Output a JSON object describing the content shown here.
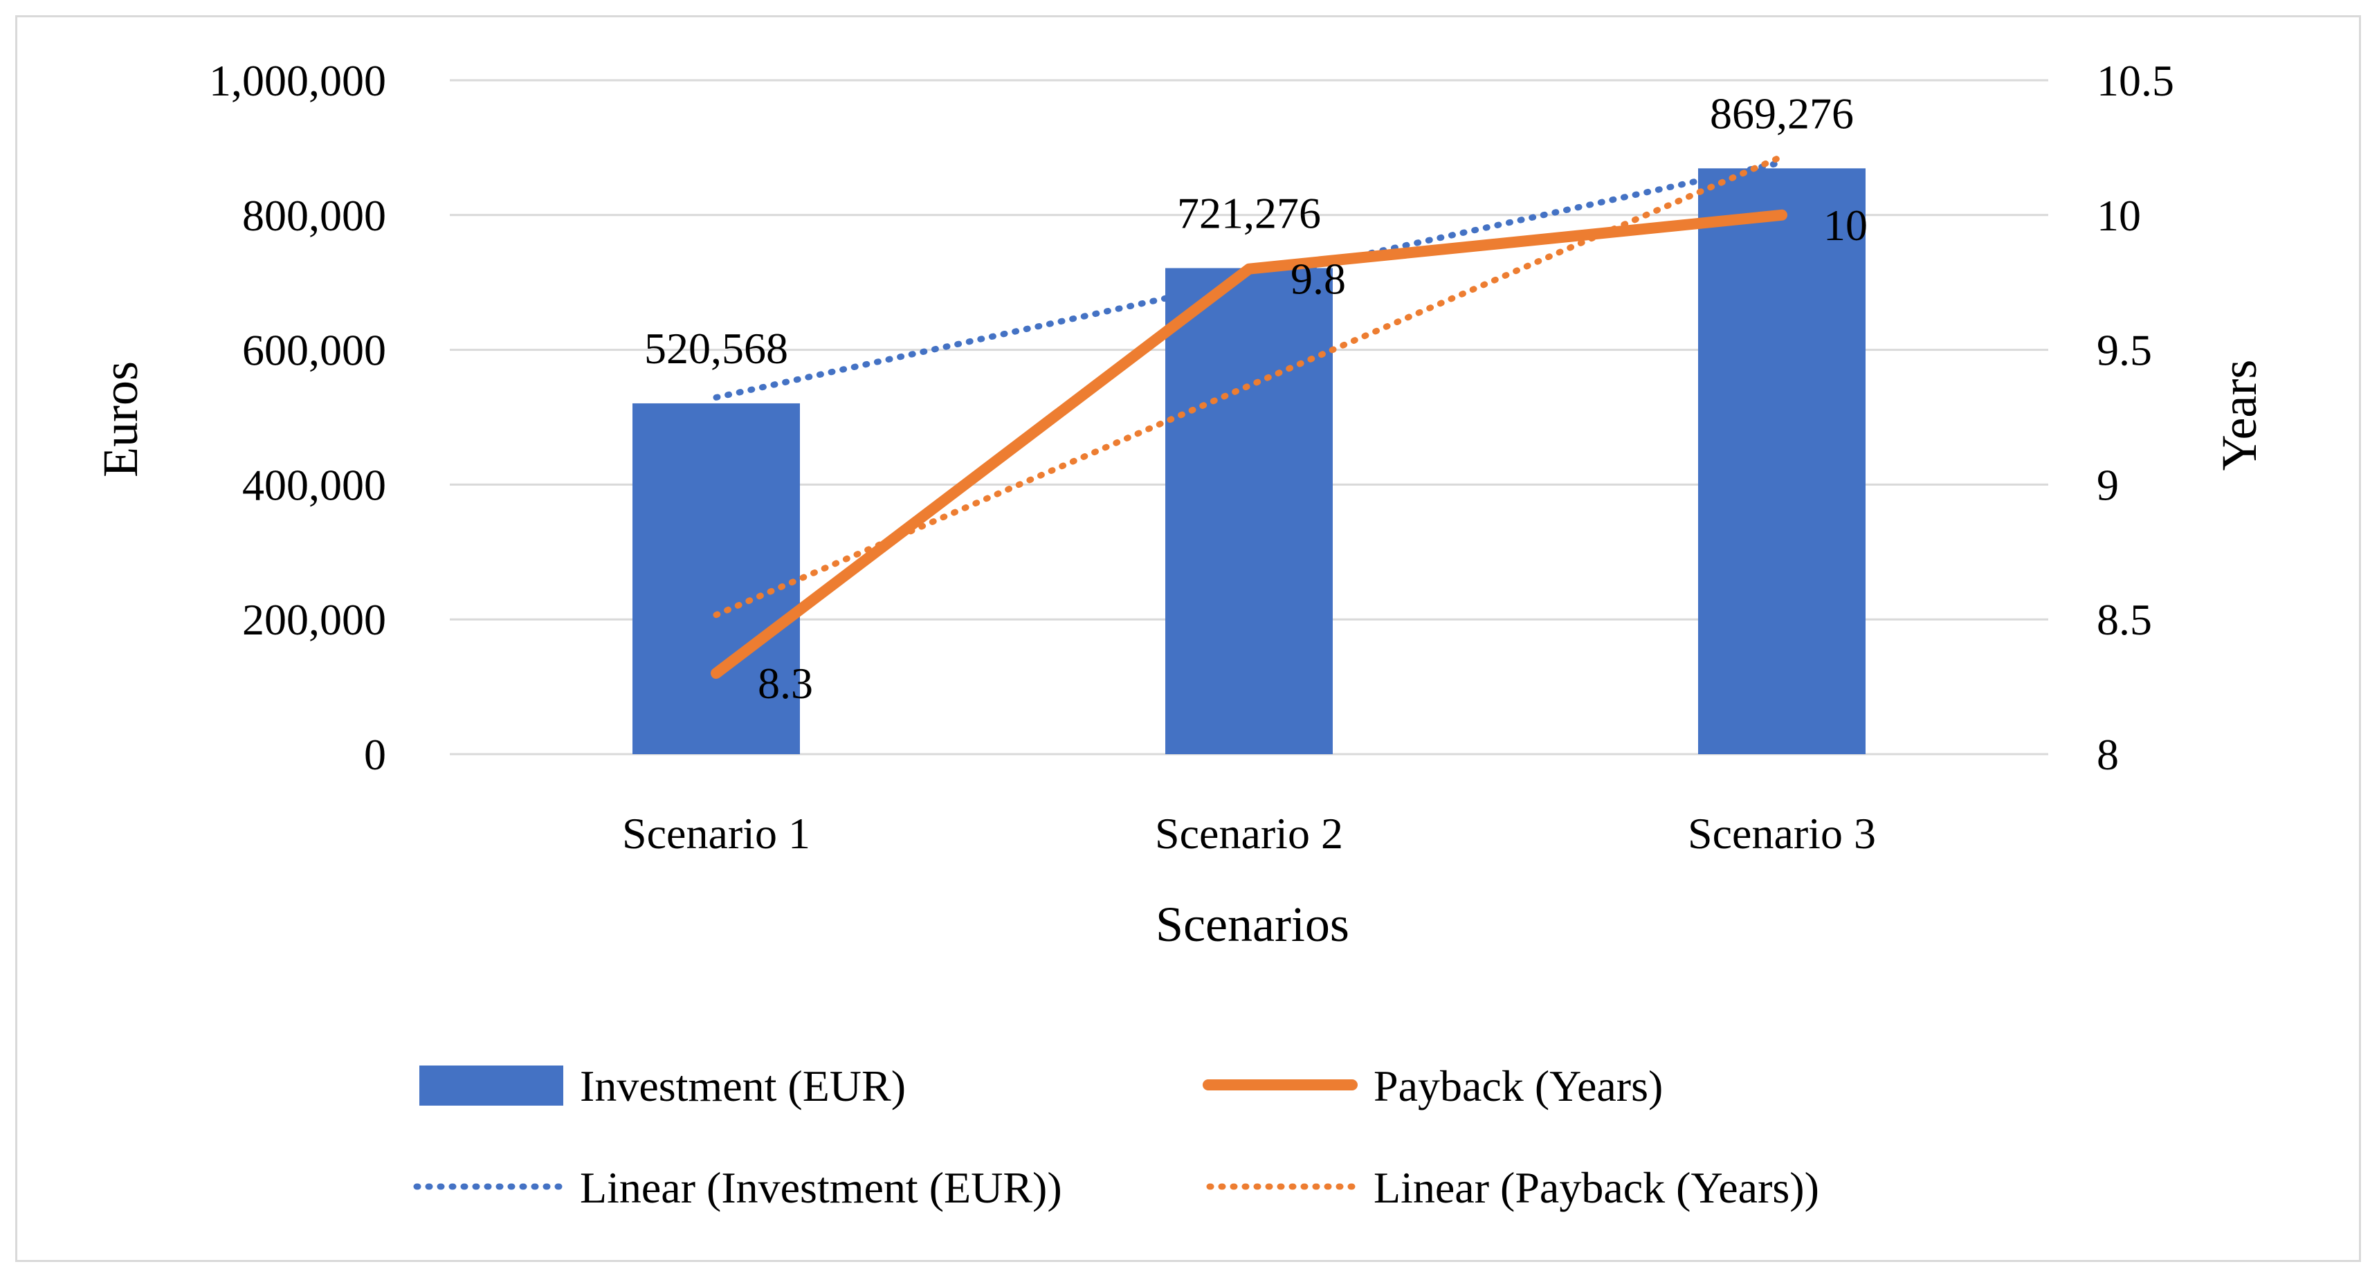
{
  "chart_data": {
    "type": "bar",
    "categories": [
      "Scenario 1",
      "Scenario 2",
      "Scenario 3"
    ],
    "series": [
      {
        "name": "Investment (EUR)",
        "kind": "bar",
        "axis": "left",
        "color": "#4472c4",
        "values": [
          520568,
          721276,
          869276
        ],
        "labels": [
          "520,568",
          "721,276",
          "869,276"
        ]
      },
      {
        "name": "Payback (Years)",
        "kind": "line",
        "axis": "right",
        "color": "#ed7d31",
        "values": [
          8.3,
          9.8,
          10
        ],
        "labels": [
          "8.3",
          "9.8",
          "10"
        ]
      }
    ],
    "trendlines": [
      {
        "name": "Linear (Investment (EUR))",
        "of": "Investment (EUR)",
        "axis": "left",
        "color": "#4472c4",
        "style": "dotted"
      },
      {
        "name": "Linear (Payback (Years))",
        "of": "Payback (Years)",
        "axis": "right",
        "color": "#ed7d31",
        "style": "dotted"
      }
    ],
    "y_left": {
      "label": "Euros",
      "min": 0,
      "max": 1000000,
      "ticks": [
        0,
        200000,
        400000,
        600000,
        800000,
        1000000
      ],
      "tick_labels": [
        "0",
        "200,000",
        "400,000",
        "600,000",
        "800,000",
        "1,000,000"
      ]
    },
    "y_right": {
      "label": "Years",
      "min": 8,
      "max": 10.5,
      "ticks": [
        8,
        8.5,
        9,
        9.5,
        10,
        10.5
      ],
      "tick_labels": [
        "8",
        "8.5",
        "9",
        "9.5",
        "10",
        "10.5"
      ]
    },
    "x_label": "Scenarios",
    "grid": true,
    "legend_position": "bottom"
  }
}
